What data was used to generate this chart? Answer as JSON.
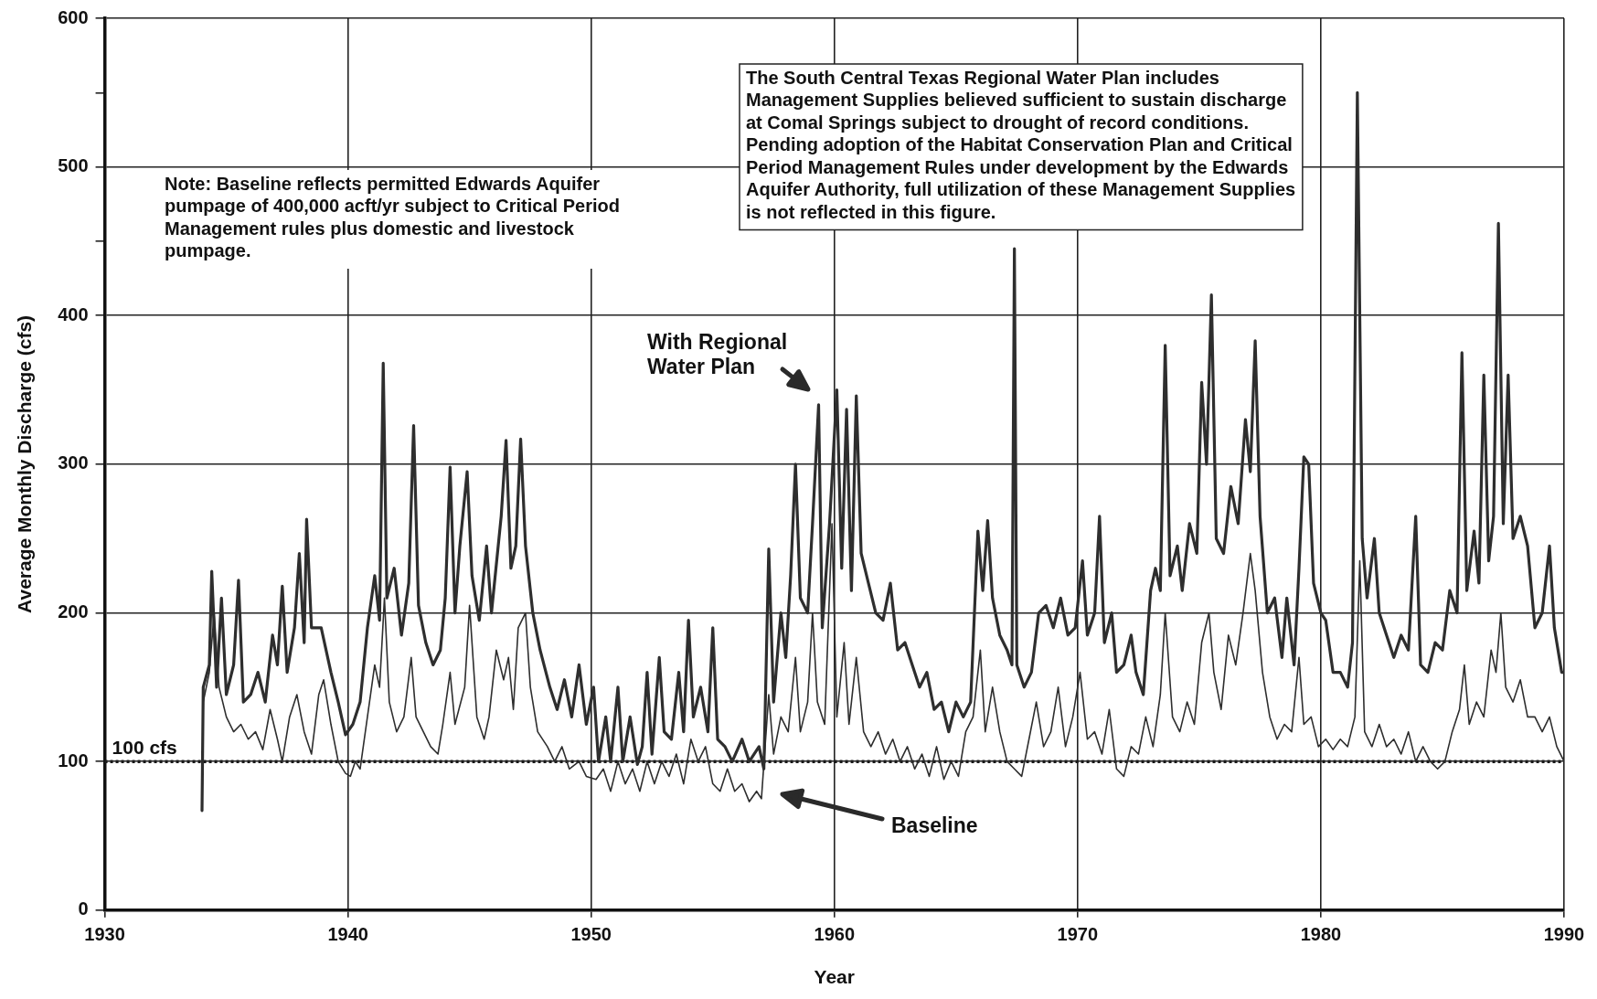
{
  "chart_data": {
    "type": "line",
    "xlabel": "Year",
    "ylabel": "Average Monthly Discharge (cfs)",
    "xlim": [
      1930,
      1990
    ],
    "xticks": [
      1930,
      1940,
      1950,
      1960,
      1970,
      1980,
      1990
    ],
    "ylim": [
      0,
      600
    ],
    "yticks": [
      0,
      100,
      200,
      300,
      400,
      {
        "value": 450,
        "label": null
      },
      500,
      {
        "value": 550,
        "label": null
      },
      600
    ],
    "grid": true,
    "legend": false,
    "marker": "none",
    "line_style": "solid",
    "ref_lines": [
      {
        "axis": "y",
        "value": 100,
        "label": "100 cfs",
        "color": "#1a1a1a",
        "line_style": "dotted"
      }
    ],
    "annotations": [
      "Note: Baseline reflects permitted Edwards Aquifer pumpage of 400,000 acft/yr subject to Critical Period Management rules plus domestic and livestock pumpage.",
      "The South Central Texas Regional Water Plan includes Management Supplies believed sufficient to sustain discharge at Comal Springs subject to drought of record conditions. Pending adoption of the Habitat Conservation Plan and Critical Period Management Rules under development by the Edwards Aquifer Authority, full utilization of these Management Supplies is not reflected in this figure."
    ],
    "series": [
      {
        "name": "With Regional Water Plan",
        "color": "#2e2e2e",
        "x": [
          1934.0,
          1934.05,
          1934.3,
          1934.4,
          1934.6,
          1934.8,
          1935.0,
          1935.3,
          1935.5,
          1935.7,
          1936.0,
          1936.3,
          1936.6,
          1936.9,
          1937.1,
          1937.3,
          1937.5,
          1937.8,
          1938.0,
          1938.2,
          1938.3,
          1938.5,
          1938.9,
          1939.3,
          1939.6,
          1939.9,
          1940.2,
          1940.5,
          1940.8,
          1941.1,
          1941.3,
          1941.45,
          1941.6,
          1941.9,
          1942.2,
          1942.5,
          1942.7,
          1942.9,
          1943.2,
          1943.5,
          1943.8,
          1944.0,
          1944.2,
          1944.4,
          1944.6,
          1944.9,
          1945.1,
          1945.4,
          1945.7,
          1945.9,
          1946.3,
          1946.5,
          1946.7,
          1946.9,
          1947.1,
          1947.3,
          1947.6,
          1947.9,
          1948.3,
          1948.6,
          1948.9,
          1949.2,
          1949.5,
          1949.8,
          1950.1,
          1950.3,
          1950.6,
          1950.8,
          1951.1,
          1951.3,
          1951.6,
          1951.9,
          1952.1,
          1952.3,
          1952.5,
          1952.8,
          1953.0,
          1953.3,
          1953.6,
          1953.8,
          1954.0,
          1954.2,
          1954.5,
          1954.8,
          1955.0,
          1955.2,
          1955.5,
          1955.8,
          1956.2,
          1956.5,
          1956.9,
          1957.1,
          1957.3,
          1957.5,
          1957.8,
          1958.0,
          1958.2,
          1958.4,
          1958.6,
          1958.9,
          1959.1,
          1959.35,
          1959.5,
          1959.8,
          1960.1,
          1960.3,
          1960.5,
          1960.7,
          1960.9,
          1961.1,
          1961.4,
          1961.7,
          1962.0,
          1962.3,
          1962.6,
          1962.9,
          1963.2,
          1963.5,
          1963.8,
          1964.1,
          1964.4,
          1964.7,
          1965.0,
          1965.3,
          1965.6,
          1965.9,
          1966.1,
          1966.3,
          1966.5,
          1966.8,
          1967.1,
          1967.3,
          1967.4,
          1967.5,
          1967.8,
          1968.1,
          1968.4,
          1968.7,
          1969.0,
          1969.3,
          1969.6,
          1969.9,
          1970.2,
          1970.4,
          1970.7,
          1970.9,
          1971.1,
          1971.4,
          1971.6,
          1971.9,
          1972.2,
          1972.4,
          1972.7,
          1973.0,
          1973.2,
          1973.4,
          1973.6,
          1973.8,
          1974.1,
          1974.3,
          1974.6,
          1974.9,
          1975.1,
          1975.3,
          1975.5,
          1975.7,
          1976.0,
          1976.3,
          1976.6,
          1976.9,
          1977.1,
          1977.3,
          1977.5,
          1977.8,
          1978.1,
          1978.4,
          1978.6,
          1978.9,
          1979.1,
          1979.3,
          1979.5,
          1979.7,
          1980.0,
          1980.2,
          1980.5,
          1980.8,
          1981.1,
          1981.3,
          1981.5,
          1981.7,
          1981.9,
          1982.2,
          1982.4,
          1982.7,
          1983.0,
          1983.3,
          1983.6,
          1983.9,
          1984.1,
          1984.4,
          1984.7,
          1985.0,
          1985.3,
          1985.6,
          1985.8,
          1986.0,
          1986.3,
          1986.5,
          1986.7,
          1986.9,
          1987.1,
          1987.3,
          1987.5,
          1987.7,
          1987.9,
          1988.2,
          1988.5,
          1988.8,
          1989.1,
          1989.4,
          1989.6,
          1989.9,
          1990.0
        ],
        "values": [
          67,
          150,
          165,
          228,
          150,
          210,
          145,
          165,
          222,
          140,
          145,
          160,
          140,
          185,
          165,
          218,
          160,
          190,
          240,
          180,
          263,
          190,
          190,
          160,
          140,
          118,
          125,
          140,
          190,
          225,
          195,
          368,
          210,
          230,
          185,
          220,
          326,
          205,
          180,
          165,
          175,
          210,
          298,
          200,
          245,
          295,
          225,
          195,
          245,
          200,
          265,
          316,
          230,
          245,
          317,
          245,
          200,
          175,
          150,
          135,
          155,
          130,
          165,
          125,
          150,
          100,
          130,
          100,
          150,
          100,
          130,
          98,
          110,
          160,
          105,
          170,
          120,
          115,
          160,
          120,
          195,
          130,
          150,
          120,
          190,
          115,
          110,
          100,
          115,
          100,
          110,
          95,
          243,
          140,
          200,
          170,
          225,
          300,
          210,
          200,
          260,
          340,
          190,
          260,
          350,
          230,
          337,
          215,
          346,
          240,
          220,
          200,
          195,
          220,
          175,
          180,
          165,
          150,
          160,
          135,
          140,
          120,
          140,
          130,
          140,
          255,
          215,
          262,
          210,
          185,
          175,
          165,
          445,
          165,
          150,
          160,
          200,
          205,
          190,
          210,
          185,
          190,
          235,
          185,
          200,
          265,
          180,
          200,
          160,
          165,
          185,
          160,
          145,
          215,
          230,
          215,
          380,
          225,
          245,
          215,
          260,
          240,
          355,
          300,
          414,
          250,
          240,
          285,
          260,
          330,
          295,
          383,
          265,
          200,
          210,
          170,
          210,
          165,
          230,
          305,
          300,
          220,
          200,
          195,
          160,
          160,
          150,
          180,
          550,
          250,
          210,
          250,
          200,
          185,
          170,
          185,
          175,
          265,
          165,
          160,
          180,
          175,
          215,
          200,
          375,
          215,
          255,
          220,
          360,
          235,
          265,
          462,
          260,
          360,
          250,
          265,
          245,
          190,
          200,
          245,
          190,
          160,
          160
        ]
      },
      {
        "name": "Baseline",
        "color": "#2e2e2e",
        "x": [
          1934.0,
          1934.05,
          1934.3,
          1934.5,
          1934.7,
          1935.0,
          1935.3,
          1935.6,
          1935.9,
          1936.2,
          1936.5,
          1936.8,
          1937.1,
          1937.3,
          1937.6,
          1937.9,
          1938.2,
          1938.5,
          1938.8,
          1939.0,
          1939.3,
          1939.6,
          1939.9,
          1940.1,
          1940.3,
          1940.5,
          1940.8,
          1941.1,
          1941.3,
          1941.5,
          1941.7,
          1942.0,
          1942.3,
          1942.6,
          1942.8,
          1943.1,
          1943.4,
          1943.7,
          1943.9,
          1944.2,
          1944.4,
          1944.8,
          1945.0,
          1945.3,
          1945.6,
          1945.8,
          1946.1,
          1946.4,
          1946.6,
          1946.8,
          1947.0,
          1947.3,
          1947.5,
          1947.8,
          1948.2,
          1948.5,
          1948.8,
          1949.1,
          1949.5,
          1949.8,
          1950.2,
          1950.5,
          1950.8,
          1951.1,
          1951.4,
          1951.7,
          1952.0,
          1952.3,
          1952.6,
          1952.9,
          1953.2,
          1953.5,
          1953.8,
          1954.1,
          1954.4,
          1954.7,
          1955.0,
          1955.3,
          1955.6,
          1955.9,
          1956.2,
          1956.5,
          1956.8,
          1957.0,
          1957.3,
          1957.5,
          1957.8,
          1958.1,
          1958.4,
          1958.6,
          1958.9,
          1959.1,
          1959.3,
          1959.6,
          1959.9,
          1960.1,
          1960.4,
          1960.6,
          1960.9,
          1961.2,
          1961.5,
          1961.8,
          1962.1,
          1962.4,
          1962.7,
          1963.0,
          1963.3,
          1963.6,
          1963.9,
          1964.2,
          1964.5,
          1964.8,
          1965.1,
          1965.4,
          1965.7,
          1966.0,
          1966.2,
          1966.5,
          1966.8,
          1967.1,
          1967.4,
          1967.7,
          1968.0,
          1968.3,
          1968.6,
          1968.9,
          1969.2,
          1969.5,
          1969.8,
          1970.1,
          1970.4,
          1970.7,
          1971.0,
          1971.3,
          1971.6,
          1971.9,
          1972.2,
          1972.5,
          1972.8,
          1973.1,
          1973.4,
          1973.6,
          1973.9,
          1974.2,
          1974.5,
          1974.8,
          1975.1,
          1975.4,
          1975.6,
          1975.9,
          1976.2,
          1976.5,
          1976.8,
          1977.1,
          1977.3,
          1977.6,
          1977.9,
          1978.2,
          1978.5,
          1978.8,
          1979.1,
          1979.3,
          1979.6,
          1979.9,
          1980.2,
          1980.5,
          1980.8,
          1981.1,
          1981.4,
          1981.6,
          1981.8,
          1982.1,
          1982.4,
          1982.7,
          1983.0,
          1983.3,
          1983.6,
          1983.9,
          1984.2,
          1984.5,
          1984.8,
          1985.1,
          1985.4,
          1985.7,
          1985.9,
          1986.1,
          1986.4,
          1986.7,
          1987.0,
          1987.2,
          1987.4,
          1987.6,
          1987.9,
          1988.2,
          1988.5,
          1988.8,
          1989.1,
          1989.4,
          1989.7,
          1990.0
        ],
        "values": [
          67,
          140,
          160,
          200,
          150,
          130,
          120,
          125,
          115,
          120,
          108,
          135,
          115,
          100,
          130,
          145,
          120,
          105,
          145,
          155,
          125,
          100,
          92,
          90,
          100,
          95,
          130,
          165,
          150,
          210,
          140,
          120,
          130,
          170,
          130,
          120,
          110,
          105,
          125,
          160,
          125,
          150,
          205,
          130,
          115,
          130,
          175,
          155,
          170,
          135,
          190,
          200,
          150,
          120,
          110,
          100,
          110,
          95,
          100,
          90,
          88,
          95,
          80,
          100,
          85,
          95,
          80,
          100,
          85,
          100,
          90,
          105,
          85,
          115,
          100,
          110,
          85,
          80,
          95,
          80,
          85,
          73,
          80,
          75,
          145,
          105,
          130,
          120,
          170,
          120,
          140,
          200,
          140,
          125,
          260,
          130,
          180,
          125,
          170,
          120,
          110,
          120,
          105,
          115,
          100,
          110,
          95,
          105,
          90,
          110,
          88,
          100,
          90,
          120,
          130,
          175,
          120,
          150,
          120,
          100,
          95,
          90,
          115,
          140,
          110,
          120,
          150,
          110,
          130,
          160,
          115,
          120,
          105,
          135,
          95,
          90,
          110,
          105,
          130,
          110,
          145,
          200,
          130,
          120,
          140,
          125,
          180,
          200,
          160,
          135,
          185,
          165,
          200,
          240,
          215,
          160,
          130,
          115,
          125,
          120,
          170,
          125,
          130,
          110,
          115,
          108,
          115,
          110,
          130,
          235,
          120,
          110,
          125,
          110,
          115,
          105,
          120,
          100,
          110,
          100,
          95,
          100,
          120,
          135,
          165,
          125,
          140,
          130,
          175,
          160,
          200,
          150,
          140,
          155,
          130,
          130,
          120,
          130,
          110,
          100
        ]
      }
    ]
  }
}
